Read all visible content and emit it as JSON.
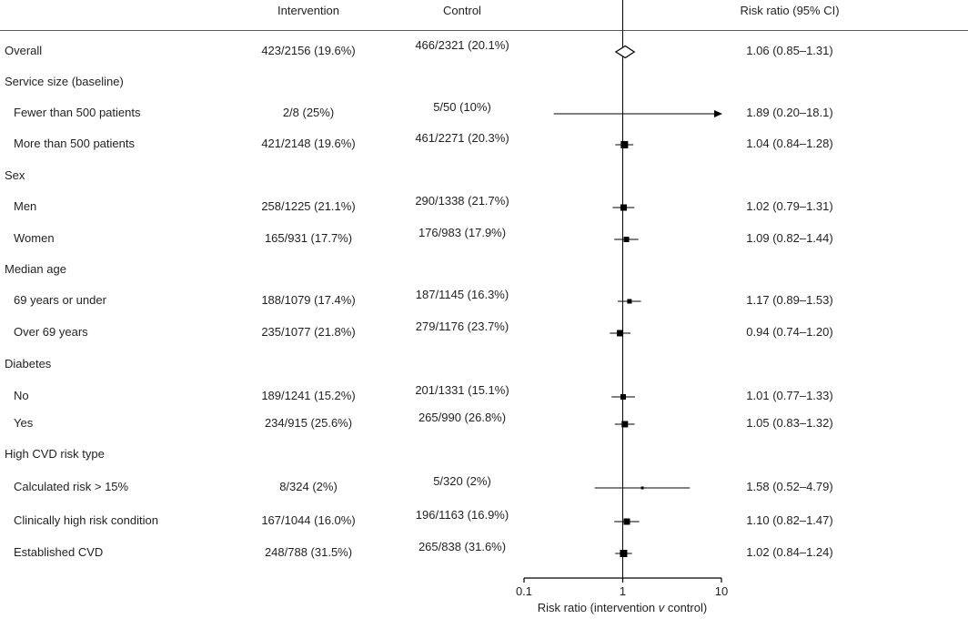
{
  "figure": {
    "col_intervention": "Intervention",
    "col_control": "Control",
    "col_risk_ratio": "Risk ratio (95% CI)"
  },
  "axis": {
    "label_pre": "Risk ratio (intervention ",
    "label_v": "v",
    "label_post": " control)"
  },
  "colors": {
    "line": "#000000",
    "text": "#231f20",
    "rule": "#55585c"
  },
  "chart_data": {
    "type": "forest",
    "xscale": "log",
    "xlim": [
      0.1,
      10
    ],
    "reference_line": 1,
    "grid": false,
    "columns": [
      "Intervention",
      "Control",
      "Risk ratio (95% CI)"
    ],
    "ticks": [
      {
        "v": 0.1,
        "label": "0.1"
      },
      {
        "v": 1,
        "label": "1"
      },
      {
        "v": 10,
        "label": "10"
      }
    ],
    "rows": [
      {
        "kind": "data",
        "indent": false,
        "label": "Overall",
        "intervention": "423/2156 (19.6%)",
        "control": "466/2321 (20.1%)",
        "rr_text": "1.06 (0.85–1.31)",
        "est": 1.06,
        "lo": 0.85,
        "hi": 1.31,
        "marker": "diamond"
      },
      {
        "kind": "group",
        "label": "Service size (baseline)"
      },
      {
        "kind": "data",
        "indent": true,
        "label": "Fewer than 500 patients",
        "intervention": "2/8 (25%)",
        "control": "5/50 (10%)",
        "rr_text": "1.89 (0.20–18.1)",
        "est": 1.89,
        "lo": 0.2,
        "hi": 18.1,
        "marker": "arrow"
      },
      {
        "kind": "data",
        "indent": true,
        "label": "More than 500 patients",
        "intervention": "421/2148 (19.6%)",
        "control": "461/2271 (20.3%)",
        "rr_text": "1.04 (0.84–1.28)",
        "est": 1.04,
        "lo": 0.84,
        "hi": 1.28,
        "marker": "square",
        "size": 8
      },
      {
        "kind": "group",
        "label": "Sex"
      },
      {
        "kind": "data",
        "indent": true,
        "label": "Men",
        "intervention": "258/1225 (21.1%)",
        "control": "290/1338 (21.7%)",
        "rr_text": "1.02 (0.79–1.31)",
        "est": 1.02,
        "lo": 0.79,
        "hi": 1.31,
        "marker": "square",
        "size": 7
      },
      {
        "kind": "data",
        "indent": true,
        "label": "Women",
        "intervention": "165/931 (17.7%)",
        "control": "176/983 (17.9%)",
        "rr_text": "1.09 (0.82–1.44)",
        "est": 1.09,
        "lo": 0.82,
        "hi": 1.44,
        "marker": "square",
        "size": 6
      },
      {
        "kind": "group",
        "label": "Median age"
      },
      {
        "kind": "data",
        "indent": true,
        "label": "69 years or under",
        "intervention": "188/1079 (17.4%)",
        "control": "187/1145 (16.3%)",
        "rr_text": "1.17 (0.89–1.53)",
        "est": 1.17,
        "lo": 0.89,
        "hi": 1.53,
        "marker": "square",
        "size": 5
      },
      {
        "kind": "data",
        "indent": true,
        "label": "Over 69 years",
        "intervention": "235/1077 (21.8%)",
        "control": "279/1176 (23.7%)",
        "rr_text": "0.94 (0.74–1.20)",
        "est": 0.94,
        "lo": 0.74,
        "hi": 1.2,
        "marker": "square",
        "size": 7
      },
      {
        "kind": "group",
        "label": "Diabetes"
      },
      {
        "kind": "data",
        "indent": true,
        "label": "No",
        "intervention": "189/1241 (15.2%)",
        "control": "201/1331 (15.1%)",
        "rr_text": "1.01 (0.77–1.33)",
        "est": 1.01,
        "lo": 0.77,
        "hi": 1.33,
        "marker": "square",
        "size": 6
      },
      {
        "kind": "data",
        "indent": true,
        "label": "Yes",
        "intervention": "234/915 (25.6%)",
        "control": "265/990 (26.8%)",
        "rr_text": "1.05 (0.83–1.32)",
        "est": 1.05,
        "lo": 0.83,
        "hi": 1.32,
        "marker": "square",
        "size": 7
      },
      {
        "kind": "group",
        "label": "High CVD risk type"
      },
      {
        "kind": "data",
        "indent": true,
        "label": "Calculated risk > 15%",
        "intervention": "8/324 (2%)",
        "control": "5/320 (2%)",
        "rr_text": "1.58 (0.52–4.79)",
        "est": 1.58,
        "lo": 0.52,
        "hi": 4.79,
        "marker": "square",
        "size": 3
      },
      {
        "kind": "data",
        "indent": true,
        "label": "Clinically high risk condition",
        "intervention": "167/1044 (16.0%)",
        "control": "196/1163 (16.9%)",
        "rr_text": "1.10 (0.82–1.47)",
        "est": 1.1,
        "lo": 0.82,
        "hi": 1.47,
        "marker": "square",
        "size": 7
      },
      {
        "kind": "data",
        "indent": true,
        "label": "Established CVD",
        "intervention": "248/788 (31.5%)",
        "control": "265/838 (31.6%)",
        "rr_text": "1.02 (0.84–1.24)",
        "est": 1.02,
        "lo": 0.84,
        "hi": 1.24,
        "marker": "square",
        "size": 8
      }
    ]
  }
}
